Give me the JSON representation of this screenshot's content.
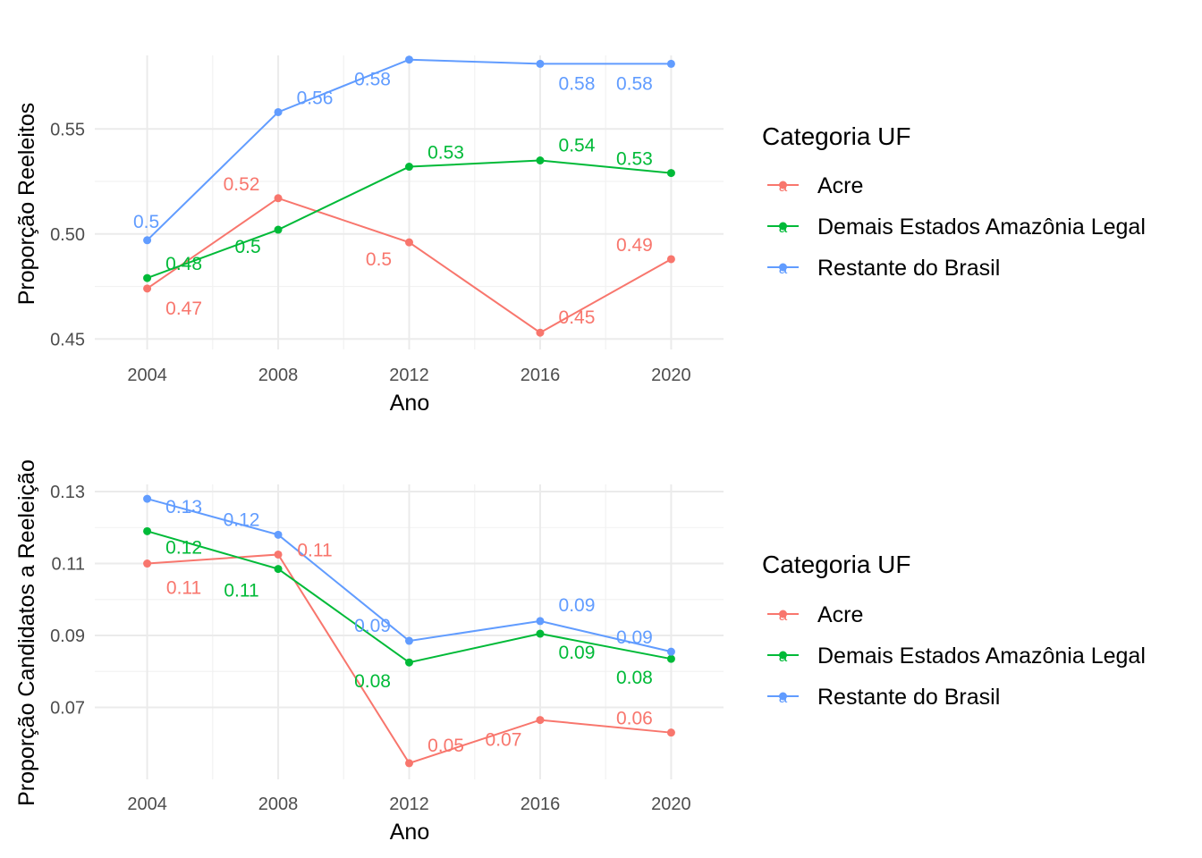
{
  "colors": {
    "Acre": "#F8766D",
    "Demais Estados Amazônia Legal": "#00BA38",
    "Restante do Brasil": "#619CFF"
  },
  "chart_data": [
    {
      "type": "line",
      "xlabel": "Ano",
      "ylabel": "Proporção Reeleitos",
      "x": [
        2004,
        2008,
        2012,
        2016,
        2020
      ],
      "xticks": [
        "2004",
        "2008",
        "2012",
        "2016",
        "2020"
      ],
      "yticks": [
        "0.45",
        "0.50",
        "0.55"
      ],
      "ylim": [
        0.445,
        0.585
      ],
      "grid": true,
      "legend": {
        "title": "Categoria UF",
        "position": "right"
      },
      "series": [
        {
          "name": "Acre",
          "values": [
            0.474,
            0.517,
            0.496,
            0.453,
            0.488
          ],
          "labels": [
            "0.47",
            "0.52",
            "0.5",
            "0.45",
            "0.49"
          ]
        },
        {
          "name": "Demais Estados Amazônia Legal",
          "values": [
            0.479,
            0.502,
            0.532,
            0.535,
            0.529
          ],
          "labels": [
            "0.48",
            "0.5",
            "0.53",
            "0.54",
            "0.53"
          ]
        },
        {
          "name": "Restante do Brasil",
          "values": [
            0.497,
            0.558,
            0.583,
            0.581,
            0.581
          ],
          "labels": [
            "0.5",
            "0.56",
            "0.58",
            "0.58",
            "0.58"
          ]
        }
      ]
    },
    {
      "type": "line",
      "xlabel": "Ano",
      "ylabel": "Proporção Candidatos a Reeleição",
      "x": [
        2004,
        2008,
        2012,
        2016,
        2020
      ],
      "xticks": [
        "2004",
        "2008",
        "2012",
        "2016",
        "2020"
      ],
      "yticks": [
        "0.07",
        "0.09",
        "0.11",
        "0.13"
      ],
      "ylim": [
        0.05,
        0.132
      ],
      "grid": true,
      "legend": {
        "title": "Categoria UF",
        "position": "right"
      },
      "series": [
        {
          "name": "Acre",
          "values": [
            0.11,
            0.1125,
            0.0545,
            0.0665,
            0.063
          ],
          "labels": [
            "0.11",
            "0.11",
            "0.05",
            "0.07",
            "0.06"
          ]
        },
        {
          "name": "Demais Estados Amazônia Legal",
          "values": [
            0.119,
            0.1085,
            0.0825,
            0.0905,
            0.0835
          ],
          "labels": [
            "0.12",
            "0.11",
            "0.08",
            "0.09",
            "0.08"
          ]
        },
        {
          "name": "Restante do Brasil",
          "values": [
            0.128,
            0.118,
            0.0885,
            0.094,
            0.0855
          ],
          "labels": [
            "0.13",
            "0.12",
            "0.09",
            "0.09",
            "0.09"
          ]
        }
      ]
    }
  ]
}
